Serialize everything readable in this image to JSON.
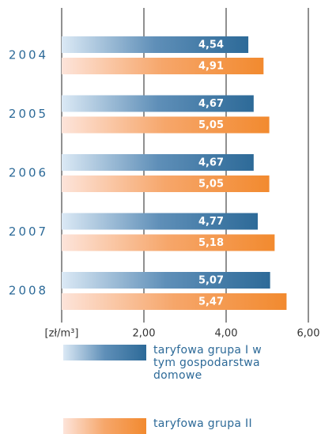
{
  "chart_data": {
    "type": "bar",
    "orientation": "horizontal",
    "categories": [
      "2004",
      "2005",
      "2006",
      "2007",
      "2008"
    ],
    "x_label": "[zł/m³]",
    "series": [
      {
        "name": "taryfowa grupa I w tym gospodarstwa domowe",
        "color": "#2d6a98",
        "values": [
          4.54,
          4.67,
          4.67,
          4.77,
          5.07
        ],
        "value_labels": [
          "4,54",
          "4,67",
          "4,67",
          "4,77",
          "5,07"
        ]
      },
      {
        "name": "taryfowa grupa II",
        "color": "#f28a2f",
        "values": [
          4.91,
          5.05,
          5.05,
          5.18,
          5.47
        ],
        "value_labels": [
          "4,91",
          "5,05",
          "5,05",
          "5,18",
          "5,47"
        ]
      }
    ],
    "xlim": [
      0,
      6
    ],
    "xticks": [
      {
        "value": 2,
        "label": "2,00"
      },
      {
        "value": 4,
        "label": "4,00"
      },
      {
        "value": 6,
        "label": "6,00"
      }
    ],
    "grid": true
  }
}
